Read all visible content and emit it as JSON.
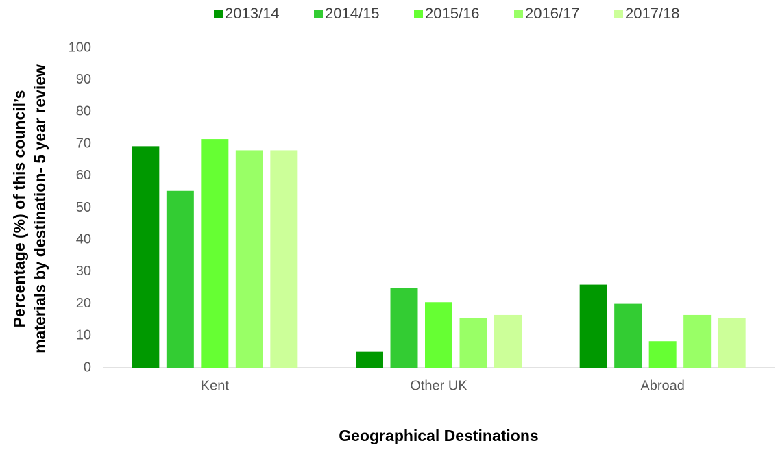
{
  "chart_data": {
    "type": "bar",
    "ylabel": [
      "Percentage (%) of this council’s",
      "materials by destination- 5 year review"
    ],
    "xlabel": "Geographical Destinations",
    "categories": [
      "Kent",
      "Other UK",
      "Abroad"
    ],
    "series": [
      {
        "name": "2013/14",
        "color": "#009900",
        "values": [
          69.3,
          5,
          26
        ]
      },
      {
        "name": "2014/15",
        "color": "#33cc33",
        "values": [
          55.3,
          25,
          20
        ]
      },
      {
        "name": "2015/16",
        "color": "#66ff33",
        "values": [
          71.5,
          20.5,
          8.3
        ]
      },
      {
        "name": "2016/17",
        "color": "#99ff66",
        "values": [
          68,
          15.5,
          16.5
        ]
      },
      {
        "name": "2017/18",
        "color": "#ccff99",
        "values": [
          68,
          16.5,
          15.5
        ]
      }
    ],
    "ylim": [
      0,
      100
    ],
    "yticks": [
      0,
      10,
      20,
      30,
      40,
      50,
      60,
      70,
      80,
      90,
      100
    ],
    "grid": false,
    "legend": "top"
  }
}
